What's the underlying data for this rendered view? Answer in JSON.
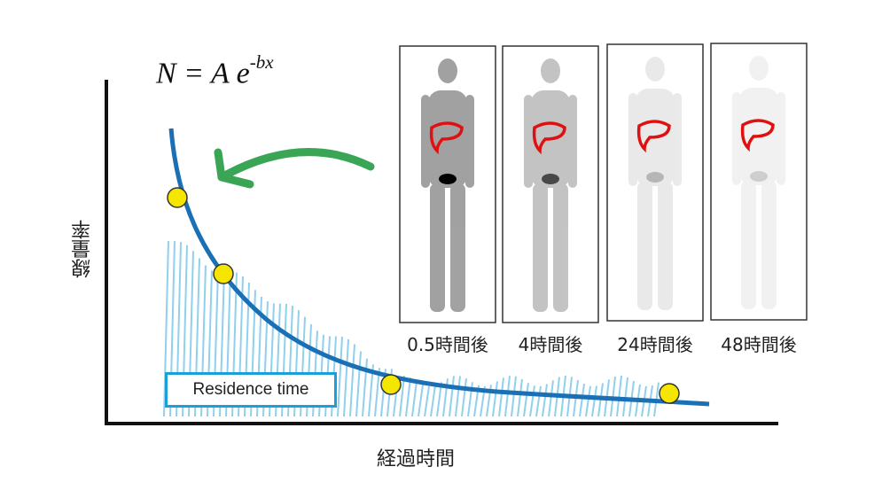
{
  "formula": {
    "lhs": "N = A e",
    "exponent": "-bx"
  },
  "axes": {
    "ylabel": "線量率",
    "xlabel": "経過時間"
  },
  "residence_label": "Residence time",
  "colors": {
    "curve": "#1a6fb5",
    "points": "#f5e600",
    "arrow": "#3aa655",
    "hatch": "#7cc8ea",
    "liver_outline": "#e01010",
    "box_border": "#1aa0d8"
  },
  "scans": [
    {
      "label": "0.5時間後",
      "intensity": 0.55
    },
    {
      "label": "4時間後",
      "intensity": 0.35
    },
    {
      "label": "24時間後",
      "intensity": 0.12
    },
    {
      "label": "48時間後",
      "intensity": 0.08
    }
  ]
}
